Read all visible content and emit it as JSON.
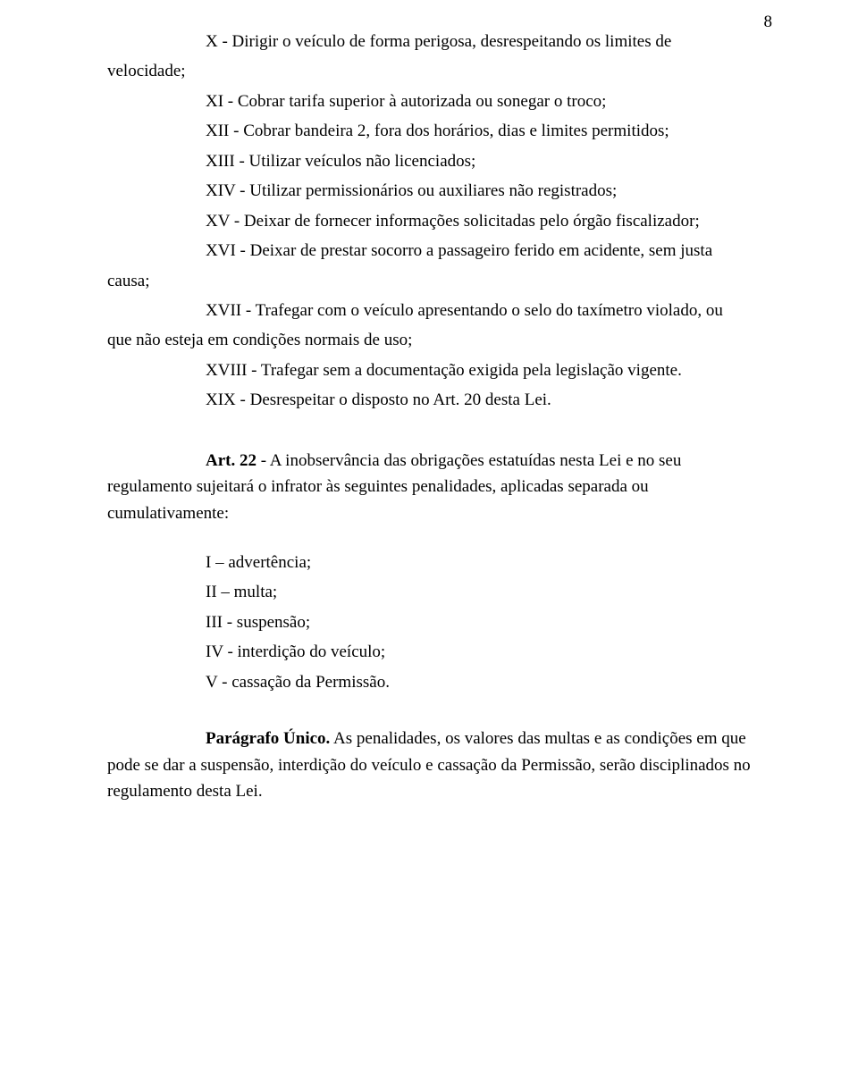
{
  "pageNumber": "8",
  "typography": {
    "fontFamily": "Times New Roman",
    "fontSizePt": 14,
    "color": "#000000"
  },
  "layout": {
    "widthPx": 960,
    "heightPx": 1212,
    "background": "#ffffff",
    "indentPx": 110
  },
  "hang1": {
    "label": "velocidade;",
    "line1_rest": "X - Dirigir o veículo de forma perigosa, desrespeitando os limites de"
  },
  "items": {
    "xi": "XI - Cobrar tarifa superior à autorizada ou sonegar o troco;",
    "xii": "XII - Cobrar bandeira 2, fora dos horários, dias e limites permitidos;",
    "xiii": "XIII - Utilizar veículos não licenciados;",
    "xiv": "XIV - Utilizar permissionários ou auxiliares não registrados;",
    "xv": "XV - Deixar de fornecer informações solicitadas pelo órgão fiscalizador;"
  },
  "hang2": {
    "label": "causa;",
    "line1_rest": "XVI - Deixar de prestar socorro a passageiro ferido em acidente, sem justa"
  },
  "hang3": {
    "line1": "XVII - Trafegar com o veículo apresentando o selo do taxímetro violado, ou",
    "line2": "que não esteja em condições normais de uso;"
  },
  "items2": {
    "xviii": "XVIII - Trafegar sem a documentação exigida pela legislação vigente.",
    "xix": "XIX - Desrespeitar o disposto no Art. 20 desta Lei."
  },
  "art22": {
    "lead_bold": "Art. 22",
    "line1_rest": " - A inobservância das obrigações estatuídas nesta Lei e no seu",
    "line2": "regulamento sujeitará o infrator às seguintes penalidades, aplicadas separada ou",
    "line3": "cumulativamente:"
  },
  "penalties": {
    "i": "I – advertência;",
    "ii": "II – multa;",
    "iii": "III - suspensão;",
    "iv": "IV - interdição do veículo;",
    "v": "V - cassação da Permissão."
  },
  "paraUnico": {
    "lead_bold": "Parágrafo Único.",
    "line1_rest": " As penalidades, os valores das multas e as condições em que",
    "line2": "pode se dar a suspensão, interdição do veículo e cassação da Permissão, serão disciplinados no",
    "line3": "regulamento desta Lei."
  }
}
